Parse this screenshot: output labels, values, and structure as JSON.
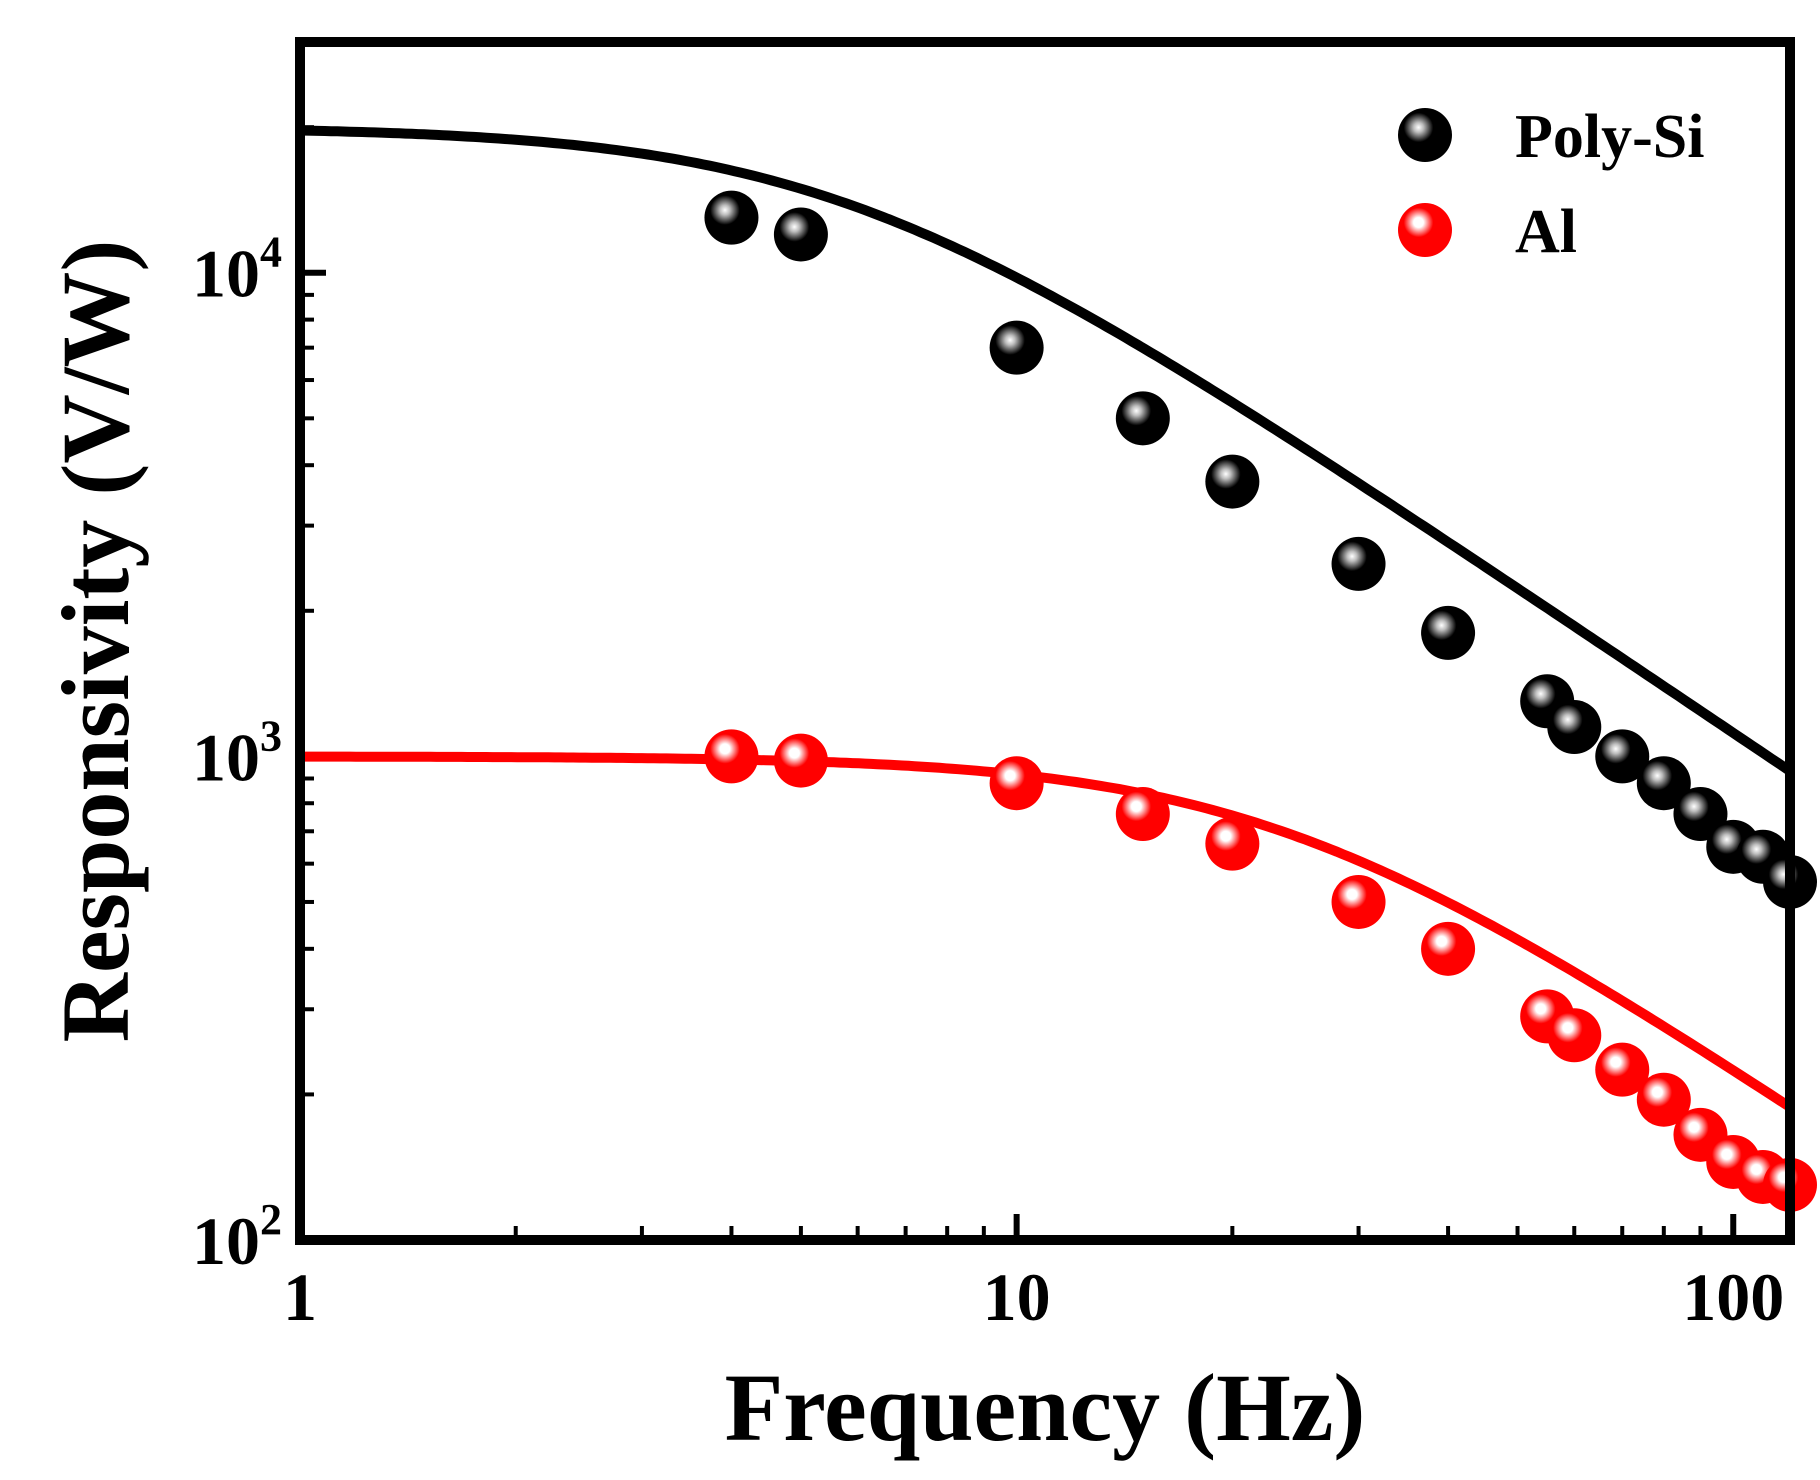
{
  "chart_data": {
    "type": "scatter",
    "title": "",
    "xlabel": "Frequency (Hz)",
    "ylabel": "Responsivity (V/W)",
    "xscale": "log",
    "yscale": "log",
    "xlim": [
      1,
      120
    ],
    "ylim": [
      100,
      30000
    ],
    "x_ticks": [
      {
        "value": 1,
        "label": "1"
      },
      {
        "value": 10,
        "label": "10"
      },
      {
        "value": 100,
        "label": "100"
      }
    ],
    "y_ticks": [
      {
        "value": 100,
        "base": "10",
        "exp": "2"
      },
      {
        "value": 1000,
        "base": "10",
        "exp": "3"
      },
      {
        "value": 10000,
        "base": "10",
        "exp": "4"
      }
    ],
    "legend_position": "top-right",
    "series": [
      {
        "name": "Poly-Si",
        "color": "#000000",
        "highlight": "#bdbdbd",
        "fit": {
          "r0": 20000,
          "fc": 5.6
        },
        "points": [
          {
            "x": 4,
            "y": 13000
          },
          {
            "x": 5,
            "y": 12000
          },
          {
            "x": 10,
            "y": 7000
          },
          {
            "x": 15,
            "y": 5000
          },
          {
            "x": 20,
            "y": 3700
          },
          {
            "x": 30,
            "y": 2500
          },
          {
            "x": 40,
            "y": 1800
          },
          {
            "x": 55,
            "y": 1300
          },
          {
            "x": 60,
            "y": 1150
          },
          {
            "x": 70,
            "y": 1000
          },
          {
            "x": 80,
            "y": 880
          },
          {
            "x": 90,
            "y": 760
          },
          {
            "x": 100,
            "y": 650
          },
          {
            "x": 110,
            "y": 620
          },
          {
            "x": 120,
            "y": 550
          }
        ]
      },
      {
        "name": "Al",
        "color": "#ff0000",
        "highlight": "#ffffff",
        "fit": {
          "r0": 1000,
          "fc": 23
        },
        "points": [
          {
            "x": 4,
            "y": 1000
          },
          {
            "x": 5,
            "y": 980
          },
          {
            "x": 10,
            "y": 880
          },
          {
            "x": 15,
            "y": 760
          },
          {
            "x": 20,
            "y": 660
          },
          {
            "x": 30,
            "y": 500
          },
          {
            "x": 40,
            "y": 400
          },
          {
            "x": 55,
            "y": 290
          },
          {
            "x": 60,
            "y": 265
          },
          {
            "x": 70,
            "y": 225
          },
          {
            "x": 80,
            "y": 195
          },
          {
            "x": 90,
            "y": 165
          },
          {
            "x": 100,
            "y": 145
          },
          {
            "x": 110,
            "y": 135
          },
          {
            "x": 120,
            "y": 130
          }
        ]
      }
    ]
  }
}
